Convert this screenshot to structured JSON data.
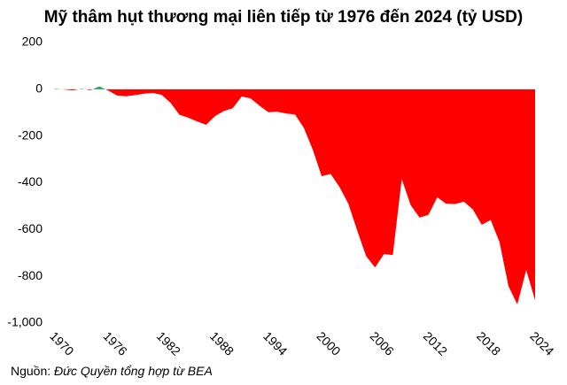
{
  "chart_data": {
    "type": "area",
    "title": "Mỹ thâm hụt thương mại liên tiếp từ 1976 đến 2024 (tỷ USD)",
    "x": [
      1970,
      1971,
      1972,
      1973,
      1974,
      1975,
      1976,
      1977,
      1978,
      1979,
      1980,
      1981,
      1982,
      1983,
      1984,
      1985,
      1986,
      1987,
      1988,
      1989,
      1990,
      1991,
      1992,
      1993,
      1994,
      1995,
      1996,
      1997,
      1998,
      1999,
      2000,
      2001,
      2002,
      2003,
      2004,
      2005,
      2006,
      2007,
      2008,
      2009,
      2010,
      2011,
      2012,
      2013,
      2014,
      2015,
      2016,
      2017,
      2018,
      2019,
      2020,
      2021,
      2022,
      2023,
      2024
    ],
    "values": [
      2,
      -1,
      -5,
      2,
      -4,
      12,
      -6,
      -27,
      -30,
      -25,
      -19,
      -16,
      -24,
      -58,
      -109,
      -122,
      -138,
      -152,
      -115,
      -93,
      -81,
      -31,
      -39,
      -70,
      -98,
      -96,
      -104,
      -108,
      -166,
      -259,
      -372,
      -362,
      -418,
      -490,
      -605,
      -714,
      -762,
      -705,
      -709,
      -384,
      -495,
      -549,
      -537,
      -462,
      -490,
      -491,
      -481,
      -514,
      -580,
      -559,
      -654,
      -842,
      -920,
      -773,
      -903
    ],
    "negative_color": "#ff0000",
    "positive_color": "#2ca05a",
    "xlim": [
      1970,
      2024
    ],
    "xticks": [
      1970,
      1976,
      1982,
      1988,
      1994,
      2000,
      2006,
      2012,
      2018,
      2024
    ],
    "ylim": [
      -1000,
      200
    ],
    "yticks": [
      200,
      0,
      -200,
      -400,
      -600,
      -800,
      {
        "value": -1000,
        "label": "-1,000"
      }
    ],
    "source": {
      "prefix": "Nguồn:",
      "text": "Đức Quyền tổng hợp từ BEA"
    }
  }
}
